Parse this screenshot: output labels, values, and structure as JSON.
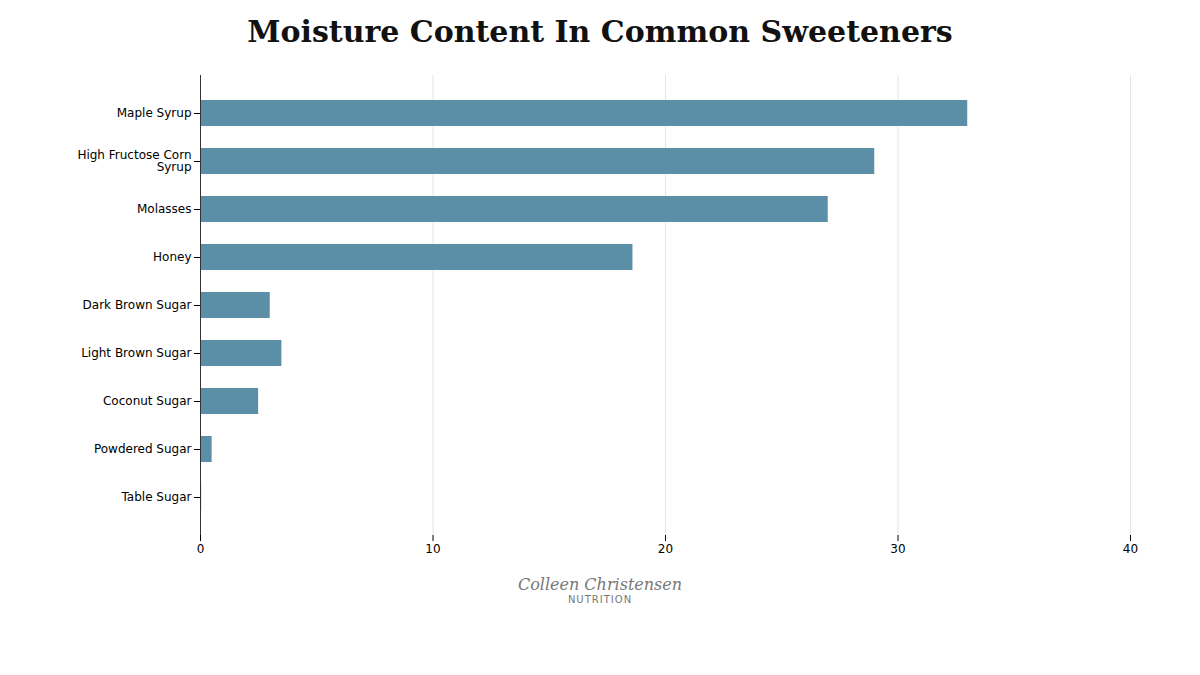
{
  "chart_data": {
    "type": "bar",
    "orientation": "horizontal",
    "title": "Moisture Content In Common Sweeteners",
    "categories": [
      "Table Sugar",
      "Powdered Sugar",
      "Coconut Sugar",
      "Light Brown Sugar",
      "Dark Brown Sugar",
      "Honey",
      "Molasses",
      "High Fructose Corn\nSyrup",
      "Maple Syrup"
    ],
    "values": [
      0.05,
      0.5,
      2.5,
      3.5,
      3.0,
      18.6,
      27.0,
      29.0,
      33.0
    ],
    "color": "#5b8fa8",
    "xlim": [
      0,
      40
    ],
    "xticks": [
      0,
      10,
      20,
      30,
      40
    ],
    "grid": true,
    "annotations": [
      "Colleen Christensen",
      "NUTRITION"
    ]
  }
}
